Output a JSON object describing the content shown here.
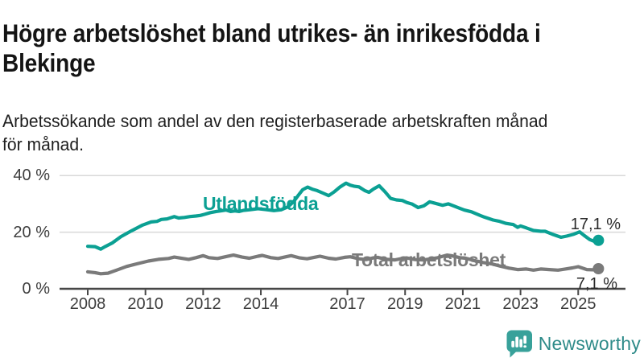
{
  "header": {
    "title_line1": "Högre arbetslöshet bland utrikes- än inrikesfödda i",
    "title_line2": "Blekinge",
    "subtitle_line1": "Arbetssökande som andel av den registerbaserade arbetskraften månad",
    "subtitle_line2": "för månad."
  },
  "footer": {
    "brand": "Newsworthy",
    "logo_icon": "bar-chart-speech-bubble-icon"
  },
  "colors": {
    "accent_teal": "#0ba093",
    "series_gray": "#7a7a7a",
    "logo_teal": "#38a19a",
    "brand_text": "#2e8b89",
    "gridline": "#d9d9d9",
    "axis": "#474747",
    "title_text": "#141414",
    "tick_text": "#3d3d3d"
  },
  "chart_data": {
    "type": "line",
    "title": "Högre arbetslöshet bland utrikes- än inrikesfödda i Blekinge",
    "subtitle": "Arbetssökande som andel av den registerbaserade arbetskraften månad för månad.",
    "xlabel": "",
    "ylabel": "",
    "grid": "horizontal",
    "legend_position": "inline-labels",
    "x_axis": {
      "range": [
        2007.6,
        2026.6
      ],
      "ticks": [
        {
          "value": 2008,
          "label": "2008"
        },
        {
          "value": 2010,
          "label": "2010"
        },
        {
          "value": 2012,
          "label": "2012"
        },
        {
          "value": 2014,
          "label": "2014"
        },
        {
          "value": 2017,
          "label": "2017"
        },
        {
          "value": 2019,
          "label": "2019"
        },
        {
          "value": 2021,
          "label": "2021"
        },
        {
          "value": 2023,
          "label": "2023"
        },
        {
          "value": 2025,
          "label": "2025"
        }
      ]
    },
    "y_axis": {
      "range": [
        0,
        40
      ],
      "unit": "%",
      "ticks": [
        {
          "value": 0,
          "label": "0 %"
        },
        {
          "value": 20,
          "label": "20 %"
        },
        {
          "value": 40,
          "label": "40 %"
        }
      ]
    },
    "series": [
      {
        "name": "Utlandsfödda",
        "color": "#0ba093",
        "end_value": 17.1,
        "end_label": "17,1 %",
        "points": [
          [
            2008.0,
            15.0
          ],
          [
            2008.25,
            14.9
          ],
          [
            2008.45,
            14.0
          ],
          [
            2008.6,
            14.9
          ],
          [
            2008.85,
            16.2
          ],
          [
            2009.15,
            18.4
          ],
          [
            2009.5,
            20.4
          ],
          [
            2009.9,
            22.5
          ],
          [
            2010.2,
            23.6
          ],
          [
            2010.4,
            23.8
          ],
          [
            2010.55,
            24.5
          ],
          [
            2010.75,
            24.7
          ],
          [
            2011.0,
            25.5
          ],
          [
            2011.15,
            25.0
          ],
          [
            2011.35,
            25.2
          ],
          [
            2011.55,
            25.5
          ],
          [
            2011.75,
            25.7
          ],
          [
            2011.9,
            25.9
          ],
          [
            2012.05,
            26.3
          ],
          [
            2012.25,
            26.9
          ],
          [
            2012.45,
            27.3
          ],
          [
            2012.6,
            27.5
          ],
          [
            2012.8,
            27.8
          ],
          [
            2012.95,
            27.3
          ],
          [
            2013.1,
            27.5
          ],
          [
            2013.25,
            27.3
          ],
          [
            2013.4,
            27.7
          ],
          [
            2013.6,
            27.9
          ],
          [
            2013.9,
            28.3
          ],
          [
            2014.15,
            28.0
          ],
          [
            2014.45,
            27.6
          ],
          [
            2014.7,
            27.9
          ],
          [
            2014.95,
            29.0
          ],
          [
            2015.15,
            31.0
          ],
          [
            2015.3,
            33.0
          ],
          [
            2015.45,
            35.0
          ],
          [
            2015.62,
            35.9
          ],
          [
            2015.8,
            35.1
          ],
          [
            2015.95,
            34.7
          ],
          [
            2016.15,
            33.8
          ],
          [
            2016.35,
            32.9
          ],
          [
            2016.55,
            34.3
          ],
          [
            2016.75,
            36.0
          ],
          [
            2016.95,
            37.3
          ],
          [
            2017.1,
            36.6
          ],
          [
            2017.25,
            36.2
          ],
          [
            2017.4,
            36.0
          ],
          [
            2017.6,
            34.7
          ],
          [
            2017.75,
            34.1
          ],
          [
            2017.9,
            35.2
          ],
          [
            2018.1,
            36.4
          ],
          [
            2018.3,
            34.3
          ],
          [
            2018.5,
            31.9
          ],
          [
            2018.7,
            31.4
          ],
          [
            2018.9,
            31.2
          ],
          [
            2019.05,
            30.5
          ],
          [
            2019.25,
            29.9
          ],
          [
            2019.45,
            28.7
          ],
          [
            2019.65,
            29.3
          ],
          [
            2019.85,
            30.7
          ],
          [
            2020.0,
            30.3
          ],
          [
            2020.3,
            29.5
          ],
          [
            2020.5,
            30.0
          ],
          [
            2020.85,
            28.6
          ],
          [
            2021.05,
            27.8
          ],
          [
            2021.3,
            27.2
          ],
          [
            2021.6,
            25.9
          ],
          [
            2021.75,
            25.3
          ],
          [
            2022.05,
            24.3
          ],
          [
            2022.25,
            23.9
          ],
          [
            2022.5,
            23.1
          ],
          [
            2022.75,
            22.7
          ],
          [
            2022.9,
            21.7
          ],
          [
            2023.0,
            22.2
          ],
          [
            2023.2,
            21.5
          ],
          [
            2023.45,
            20.6
          ],
          [
            2023.7,
            20.3
          ],
          [
            2023.85,
            20.3
          ],
          [
            2024.1,
            19.3
          ],
          [
            2024.4,
            18.2
          ],
          [
            2024.6,
            18.6
          ],
          [
            2024.85,
            19.3
          ],
          [
            2025.05,
            20.1
          ],
          [
            2025.2,
            18.9
          ],
          [
            2025.4,
            17.4
          ],
          [
            2025.55,
            16.8
          ],
          [
            2025.7,
            17.1
          ]
        ]
      },
      {
        "name": "Total arbetslöshet",
        "color": "#7a7a7a",
        "end_value": 7.1,
        "end_label": "7,1 %",
        "points": [
          [
            2008.0,
            6.0
          ],
          [
            2008.25,
            5.7
          ],
          [
            2008.45,
            5.3
          ],
          [
            2008.7,
            5.5
          ],
          [
            2009.0,
            6.6
          ],
          [
            2009.35,
            7.9
          ],
          [
            2009.7,
            8.8
          ],
          [
            2010.1,
            9.8
          ],
          [
            2010.45,
            10.4
          ],
          [
            2010.8,
            10.7
          ],
          [
            2011.0,
            11.2
          ],
          [
            2011.3,
            10.7
          ],
          [
            2011.5,
            10.4
          ],
          [
            2011.75,
            11.0
          ],
          [
            2012.0,
            11.7
          ],
          [
            2012.2,
            11.0
          ],
          [
            2012.5,
            10.7
          ],
          [
            2012.8,
            11.4
          ],
          [
            2013.05,
            11.9
          ],
          [
            2013.35,
            11.2
          ],
          [
            2013.6,
            10.8
          ],
          [
            2013.9,
            11.5
          ],
          [
            2014.05,
            11.8
          ],
          [
            2014.35,
            11.0
          ],
          [
            2014.6,
            10.7
          ],
          [
            2014.9,
            11.4
          ],
          [
            2015.05,
            11.7
          ],
          [
            2015.35,
            10.9
          ],
          [
            2015.6,
            10.6
          ],
          [
            2015.9,
            11.2
          ],
          [
            2016.05,
            11.5
          ],
          [
            2016.35,
            10.8
          ],
          [
            2016.6,
            10.5
          ],
          [
            2016.9,
            11.1
          ],
          [
            2017.1,
            11.3
          ],
          [
            2017.4,
            10.6
          ],
          [
            2017.65,
            10.3
          ],
          [
            2017.9,
            10.9
          ],
          [
            2018.05,
            11.1
          ],
          [
            2018.35,
            10.4
          ],
          [
            2018.65,
            10.2
          ],
          [
            2018.9,
            10.7
          ],
          [
            2019.05,
            10.9
          ],
          [
            2019.35,
            10.3
          ],
          [
            2019.65,
            10.2
          ],
          [
            2019.9,
            10.6
          ],
          [
            2020.1,
            10.9
          ],
          [
            2020.45,
            11.9
          ],
          [
            2020.6,
            11.7
          ],
          [
            2020.9,
            11.0
          ],
          [
            2021.1,
            10.8
          ],
          [
            2021.4,
            10.0
          ],
          [
            2021.7,
            9.3
          ],
          [
            2022.0,
            8.8
          ],
          [
            2022.3,
            8.0
          ],
          [
            2022.6,
            7.3
          ],
          [
            2022.9,
            6.8
          ],
          [
            2023.2,
            7.0
          ],
          [
            2023.45,
            6.6
          ],
          [
            2023.7,
            7.0
          ],
          [
            2024.0,
            6.8
          ],
          [
            2024.3,
            6.6
          ],
          [
            2024.55,
            7.0
          ],
          [
            2024.8,
            7.4
          ],
          [
            2025.0,
            7.8
          ],
          [
            2025.3,
            6.8
          ],
          [
            2025.5,
            6.7
          ],
          [
            2025.7,
            7.1
          ]
        ]
      }
    ]
  }
}
